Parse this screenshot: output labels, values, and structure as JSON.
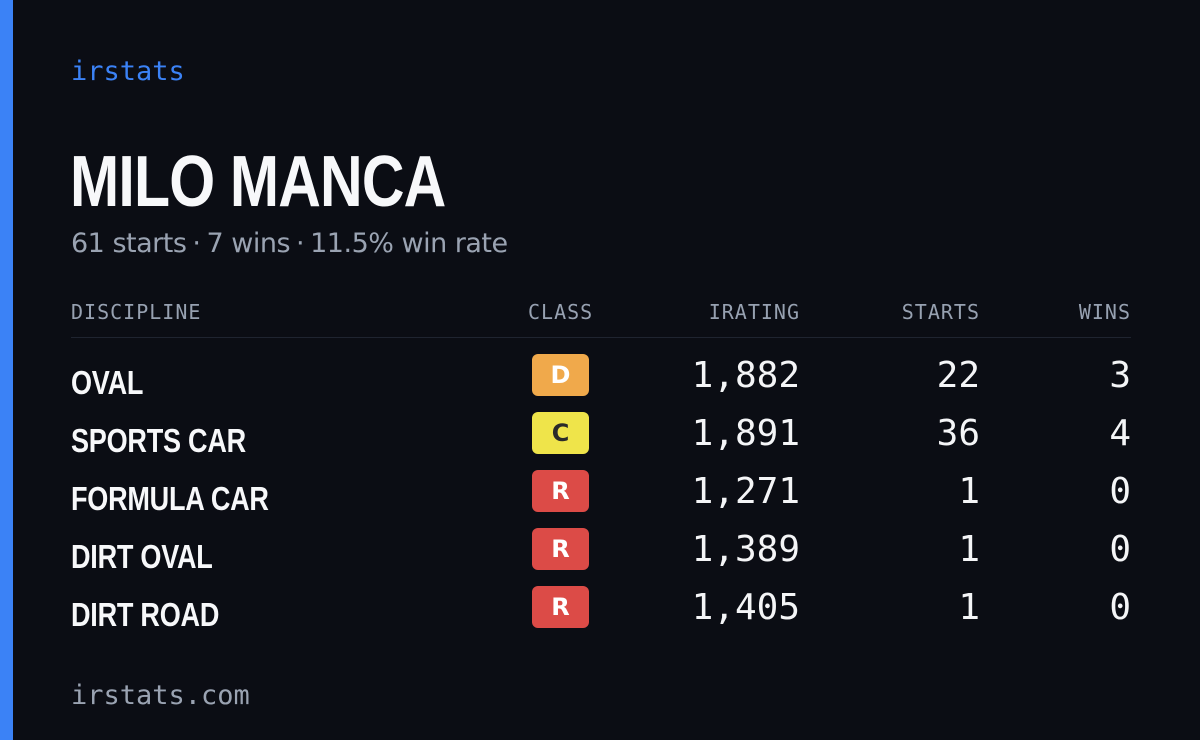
{
  "theme": {
    "accent": "#3b82f6",
    "background": "#0b0d14",
    "class_colors": {
      "D": {
        "bg": "#f0a94b",
        "fg": "#ffffff"
      },
      "C": {
        "bg": "#efe44a",
        "fg": "#2a2a2a"
      },
      "R": {
        "bg": "#dc4b47",
        "fg": "#ffffff"
      }
    }
  },
  "brand": "irstats",
  "player": {
    "name": "MILO MANCA",
    "starts_text": "61 starts",
    "wins_text": "7 wins",
    "win_rate_text": "11.5% win rate",
    "separator": "·"
  },
  "table": {
    "headers": {
      "discipline": "DISCIPLINE",
      "class": "CLASS",
      "irating": "IRATING",
      "starts": "STARTS",
      "wins": "WINS"
    },
    "rows": [
      {
        "discipline": "OVAL",
        "class": "D",
        "irating": "1,882",
        "starts": "22",
        "wins": "3"
      },
      {
        "discipline": "SPORTS CAR",
        "class": "C",
        "irating": "1,891",
        "starts": "36",
        "wins": "4"
      },
      {
        "discipline": "FORMULA CAR",
        "class": "R",
        "irating": "1,271",
        "starts": "1",
        "wins": "0"
      },
      {
        "discipline": "DIRT OVAL",
        "class": "R",
        "irating": "1,389",
        "starts": "1",
        "wins": "0"
      },
      {
        "discipline": "DIRT ROAD",
        "class": "R",
        "irating": "1,405",
        "starts": "1",
        "wins": "0"
      }
    ]
  },
  "footer": "irstats.com"
}
